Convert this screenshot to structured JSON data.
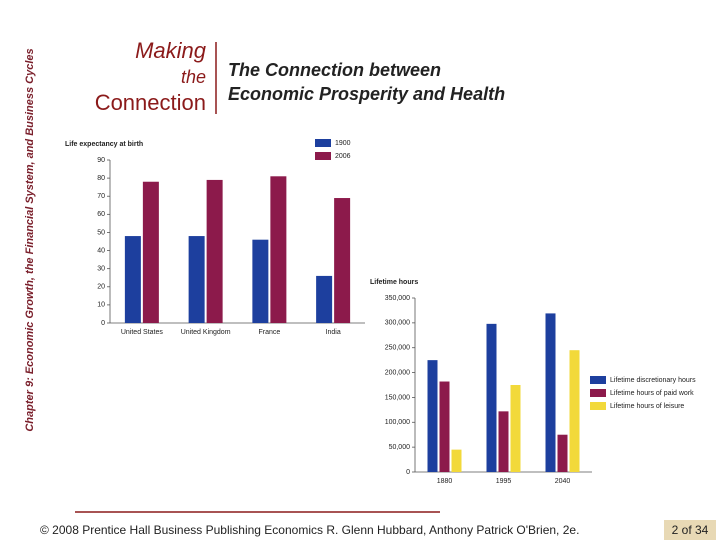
{
  "side_title": "Chapter 9: Economic Growth, the Financial System, and Business Cycles",
  "feature": [
    "Making",
    "the",
    "Connection"
  ],
  "title": [
    "The Connection between",
    "Economic Prosperity and Health"
  ],
  "footer": "© 2008 Prentice Hall Business Publishing   Economics  R. Glenn Hubbard, Anthony Patrick O'Brien, 2e.",
  "page": "2 of 34",
  "chart_data": [
    {
      "type": "bar",
      "y_label": "Life expectancy at birth",
      "categories": [
        "United States",
        "United Kingdom",
        "France",
        "India"
      ],
      "series": [
        {
          "name": "1900",
          "color": "#1d3f9e",
          "values": [
            48,
            48,
            46,
            26
          ]
        },
        {
          "name": "2006",
          "color": "#8c1a4b",
          "values": [
            78,
            79,
            81,
            69
          ]
        }
      ],
      "ylim": [
        0,
        90
      ],
      "yticks": [
        0,
        10,
        20,
        30,
        40,
        50,
        60,
        70,
        80,
        90
      ]
    },
    {
      "type": "bar",
      "y_label": "Lifetime hours",
      "categories": [
        "1880",
        "1995",
        "2040"
      ],
      "series": [
        {
          "name": "Lifetime discretionary hours",
          "color": "#1d3f9e",
          "values": [
            225000,
            298000,
            319000
          ]
        },
        {
          "name": "Lifetime hours of paid work",
          "color": "#8c1a4b",
          "values": [
            182000,
            122000,
            75000
          ]
        },
        {
          "name": "Lifetime hours of leisure",
          "color": "#f2d93a",
          "values": [
            45000,
            175000,
            245000
          ]
        }
      ],
      "ylim": [
        0,
        350000
      ],
      "yticks": [
        0,
        {
          "value": 50000,
          "label": "50,000"
        },
        {
          "value": 100000,
          "label": "100,000"
        },
        {
          "value": 150000,
          "label": "150,000"
        },
        {
          "value": 200000,
          "label": "200,000"
        },
        {
          "value": 250000,
          "label": "250,000"
        },
        {
          "value": 300000,
          "label": "300,000"
        },
        {
          "value": 350000,
          "label": "350,000"
        }
      ]
    }
  ]
}
